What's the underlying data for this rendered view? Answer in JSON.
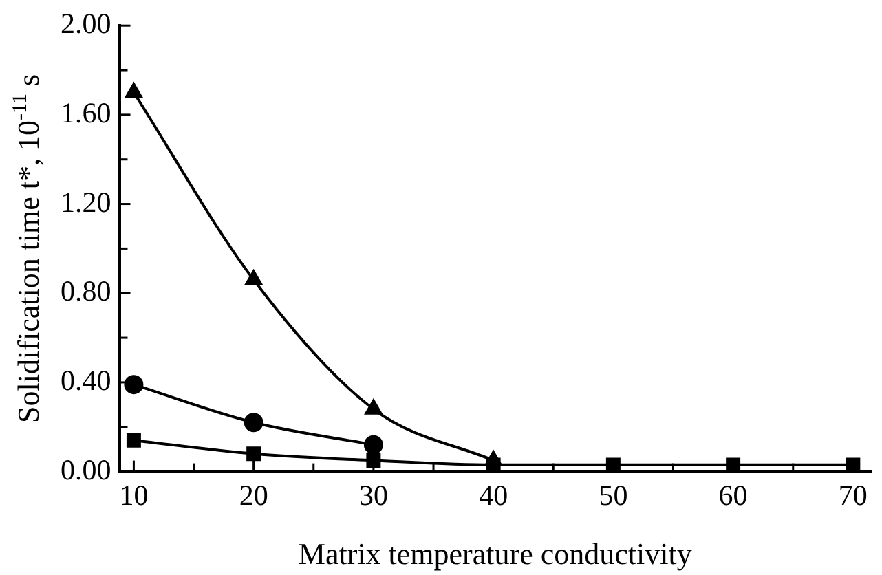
{
  "chart_data": {
    "type": "line",
    "xlabel": "Matrix temperature conductivity",
    "ylabel": "Solidification time t*, 10$^{-11}$ s",
    "x": [
      10,
      20,
      30,
      40,
      50,
      60,
      70
    ],
    "series": [
      {
        "color": "#000000",
        "marker": "triangle",
        "values": [
          1.7,
          0.86,
          0.28,
          0.05,
          null,
          null,
          null
        ]
      },
      {
        "color": "#000000",
        "marker": "circle",
        "values": [
          0.39,
          0.22,
          0.12,
          null,
          null,
          null,
          null
        ]
      },
      {
        "color": "#000000",
        "marker": "square",
        "values": [
          0.14,
          0.08,
          0.05,
          0.03,
          0.03,
          0.03,
          0.03
        ]
      }
    ],
    "xlim": [
      8.8,
      71.5
    ],
    "xticks": [
      10,
      {
        "value": 15,
        "label": null
      },
      20,
      {
        "value": 25,
        "label": null
      },
      30,
      {
        "value": 35,
        "label": null
      },
      40,
      {
        "value": 45,
        "label": null
      },
      50,
      {
        "value": 55,
        "label": null
      },
      60,
      {
        "value": 65,
        "label": null
      },
      70
    ],
    "ylim": [
      0,
      2
    ],
    "yticks": [
      {
        "value": 0,
        "label": "0.00"
      },
      {
        "value": 0.2,
        "label": null
      },
      {
        "value": 0.4,
        "label": "0.40"
      },
      {
        "value": 0.6,
        "label": null
      },
      {
        "value": 0.8,
        "label": "0.80"
      },
      {
        "value": 1.0,
        "label": null
      },
      {
        "value": 1.2,
        "label": "1.20"
      },
      {
        "value": 1.4,
        "label": null
      },
      {
        "value": 1.6,
        "label": "1.60"
      },
      {
        "value": 1.8,
        "label": null
      },
      {
        "value": 2.0,
        "label": "2.00"
      }
    ],
    "grid": false,
    "legend": false,
    "line_style": "solid"
  }
}
